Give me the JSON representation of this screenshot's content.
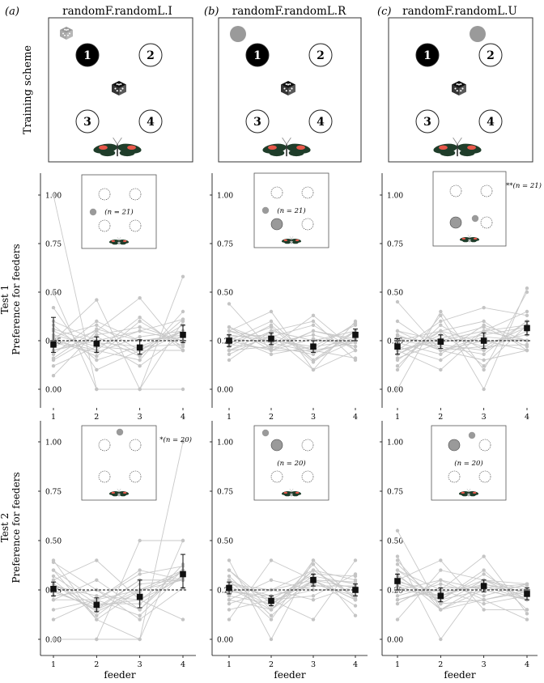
{
  "panel_letters": [
    "(a)",
    "(b)",
    "(c)"
  ],
  "column_titles": [
    "randomF.randomL.I",
    "randomF.randomL.R",
    "randomF.randomL.U"
  ],
  "row_titles": {
    "training": "Training scheme",
    "test1": "Test 1",
    "test2": "Test 2",
    "ylabel": "Preference for feeders"
  },
  "feeder_labels": [
    "1",
    "2",
    "3",
    "4"
  ],
  "colors": {
    "points": "#c4c4c4",
    "lines": "#c8c8c8",
    "mean": "#111111",
    "gray_feeder": "#9a9a9a",
    "black_feeder": "#000000",
    "butterfly_wing": "#1f3d2a",
    "butterfly_spot": "#e8574a"
  },
  "training_schemes": [
    {
      "black": [
        1
      ],
      "gray_dot": "top-left-dice",
      "dice_color": "#999999"
    },
    {
      "black": [
        1
      ],
      "gray_dot": "top-left-circle"
    },
    {
      "black": [
        1
      ],
      "gray_dot": "top-right-circle"
    }
  ],
  "insets": [
    {
      "n_label": "(n = 21)",
      "significance": "",
      "gray_feeders": [],
      "small_gray": "left-mid"
    },
    {
      "n_label": "(n = 21)",
      "significance": "",
      "gray_feeders": [
        3
      ],
      "small_gray": "left-mid"
    },
    {
      "n_label": "",
      "significance": "**(n = 21)",
      "gray_feeders": [
        3
      ],
      "small_gray": "center"
    },
    {
      "n_label": "",
      "significance": "*(n = 20)",
      "gray_feeders": [],
      "small_gray": "top-center"
    },
    {
      "n_label": "(n = 20)",
      "significance": "",
      "gray_feeders": [
        1
      ],
      "small_gray": "top-left"
    },
    {
      "n_label": "(n = 20)",
      "significance": "",
      "gray_feeders": [
        1
      ],
      "small_gray": "top-right"
    }
  ],
  "chart_data": [
    {
      "type": "line",
      "id": "a-test1",
      "title": "randomF.randomL.I — Test 1",
      "xlabel": "",
      "ylabel": "Preference for feeders",
      "categories": [
        "1",
        "2",
        "3",
        "4"
      ],
      "yticks": [
        "0.00",
        "0.25",
        "0.50",
        "0.75",
        "1.00"
      ],
      "ylim": [
        0,
        1
      ],
      "chance_level": 0.25,
      "mean": [
        0.23,
        0.235,
        0.215,
        0.28
      ],
      "ci": [
        [
          0.19,
          0.37
        ],
        [
          0.19,
          0.27
        ],
        [
          0.18,
          0.255
        ],
        [
          0.24,
          0.33
        ]
      ],
      "individuals": [
        [
          1.0,
          0.0,
          0.0,
          0.0
        ],
        [
          0.5,
          0.0,
          0.0,
          0.58
        ],
        [
          0.42,
          0.1,
          0.2,
          0.3
        ],
        [
          0.07,
          0.3,
          0.47,
          0.2
        ],
        [
          0.25,
          0.46,
          0.0,
          0.35
        ],
        [
          0.3,
          0.2,
          0.37,
          0.2
        ],
        [
          0.18,
          0.35,
          0.25,
          0.27
        ],
        [
          0.2,
          0.25,
          0.3,
          0.25
        ],
        [
          0.28,
          0.22,
          0.2,
          0.33
        ],
        [
          0.15,
          0.28,
          0.32,
          0.25
        ],
        [
          0.25,
          0.2,
          0.15,
          0.4
        ],
        [
          0.33,
          0.15,
          0.22,
          0.3
        ],
        [
          0.22,
          0.3,
          0.18,
          0.3
        ],
        [
          0.35,
          0.25,
          0.12,
          0.28
        ],
        [
          0.12,
          0.22,
          0.3,
          0.36
        ],
        [
          0.27,
          0.33,
          0.2,
          0.2
        ],
        [
          0.24,
          0.19,
          0.27,
          0.3
        ],
        [
          0.2,
          0.27,
          0.17,
          0.36
        ],
        [
          0.31,
          0.24,
          0.22,
          0.23
        ],
        [
          0.16,
          0.31,
          0.25,
          0.28
        ],
        [
          0.26,
          0.17,
          0.35,
          0.22
        ]
      ]
    },
    {
      "type": "line",
      "id": "b-test1",
      "title": "randomF.randomL.R — Test 1",
      "xlabel": "",
      "ylabel": "",
      "categories": [
        "1",
        "2",
        "3",
        "4"
      ],
      "yticks": [
        "0.00",
        "0.25",
        "0.50",
        "0.75",
        "1.00"
      ],
      "ylim": [
        0,
        1
      ],
      "chance_level": 0.25,
      "mean": [
        0.25,
        0.26,
        0.22,
        0.28
      ],
      "ci": [
        [
          0.22,
          0.28
        ],
        [
          0.23,
          0.29
        ],
        [
          0.19,
          0.25
        ],
        [
          0.25,
          0.31
        ]
      ],
      "individuals": [
        [
          0.44,
          0.2,
          0.2,
          0.16
        ],
        [
          0.3,
          0.4,
          0.1,
          0.2
        ],
        [
          0.2,
          0.3,
          0.35,
          0.15
        ],
        [
          0.25,
          0.2,
          0.3,
          0.25
        ],
        [
          0.22,
          0.33,
          0.15,
          0.3
        ],
        [
          0.28,
          0.25,
          0.22,
          0.25
        ],
        [
          0.18,
          0.28,
          0.2,
          0.34
        ],
        [
          0.3,
          0.22,
          0.18,
          0.3
        ],
        [
          0.2,
          0.3,
          0.25,
          0.25
        ],
        [
          0.26,
          0.24,
          0.28,
          0.22
        ],
        [
          0.24,
          0.32,
          0.14,
          0.3
        ],
        [
          0.32,
          0.2,
          0.26,
          0.22
        ],
        [
          0.2,
          0.27,
          0.33,
          0.2
        ],
        [
          0.27,
          0.18,
          0.22,
          0.33
        ],
        [
          0.15,
          0.3,
          0.25,
          0.3
        ],
        [
          0.3,
          0.26,
          0.2,
          0.24
        ],
        [
          0.23,
          0.21,
          0.3,
          0.26
        ],
        [
          0.25,
          0.35,
          0.15,
          0.25
        ],
        [
          0.32,
          0.24,
          0.19,
          0.25
        ],
        [
          0.2,
          0.22,
          0.38,
          0.2
        ],
        [
          0.27,
          0.28,
          0.1,
          0.35
        ]
      ]
    },
    {
      "type": "line",
      "id": "c-test1",
      "title": "randomF.randomL.U — Test 1",
      "xlabel": "",
      "ylabel": "",
      "categories": [
        "1",
        "2",
        "3",
        "4"
      ],
      "yticks": [
        "0.00",
        "0.25",
        "0.50",
        "0.75",
        "1.00"
      ],
      "ylim": [
        0,
        1
      ],
      "chance_level": 0.25,
      "mean": [
        0.22,
        0.245,
        0.25,
        0.315
      ],
      "ci": [
        [
          0.18,
          0.26
        ],
        [
          0.21,
          0.28
        ],
        [
          0.21,
          0.29
        ],
        [
          0.28,
          0.35
        ]
      ],
      "individuals": [
        [
          0.0,
          0.4,
          0.1,
          0.5
        ],
        [
          0.45,
          0.2,
          0.15,
          0.2
        ],
        [
          0.1,
          0.38,
          0.0,
          0.52
        ],
        [
          0.2,
          0.1,
          0.3,
          0.4
        ],
        [
          0.3,
          0.2,
          0.25,
          0.25
        ],
        [
          0.15,
          0.3,
          0.35,
          0.2
        ],
        [
          0.25,
          0.22,
          0.18,
          0.35
        ],
        [
          0.2,
          0.25,
          0.3,
          0.25
        ],
        [
          0.18,
          0.28,
          0.22,
          0.32
        ],
        [
          0.28,
          0.2,
          0.27,
          0.25
        ],
        [
          0.22,
          0.15,
          0.3,
          0.33
        ],
        [
          0.12,
          0.33,
          0.2,
          0.35
        ],
        [
          0.3,
          0.25,
          0.25,
          0.2
        ],
        [
          0.25,
          0.3,
          0.12,
          0.33
        ],
        [
          0.2,
          0.26,
          0.32,
          0.22
        ],
        [
          0.16,
          0.24,
          0.28,
          0.32
        ],
        [
          0.35,
          0.2,
          0.22,
          0.23
        ],
        [
          0.24,
          0.18,
          0.33,
          0.25
        ],
        [
          0.27,
          0.23,
          0.2,
          0.3
        ],
        [
          0.18,
          0.3,
          0.24,
          0.28
        ],
        [
          0.2,
          0.35,
          0.42,
          0.38
        ]
      ]
    },
    {
      "type": "line",
      "id": "a-test2",
      "title": "randomF.randomL.I — Test 2",
      "xlabel": "feeder",
      "ylabel": "Preference for feeders",
      "categories": [
        "1",
        "2",
        "3",
        "4"
      ],
      "yticks": [
        "0.00",
        "0.25",
        "0.50",
        "0.75",
        "1.00"
      ],
      "ylim": [
        0,
        1
      ],
      "chance_level": 0.25,
      "mean": [
        0.255,
        0.175,
        0.215,
        0.33
      ],
      "ci": [
        [
          0.22,
          0.29
        ],
        [
          0.14,
          0.21
        ],
        [
          0.16,
          0.3
        ],
        [
          0.26,
          0.43
        ]
      ],
      "individuals": [
        [
          0.0,
          0.0,
          0.0,
          1.0
        ],
        [
          0.0,
          0.0,
          0.5,
          0.5
        ],
        [
          0.4,
          0.1,
          0.0,
          0.5
        ],
        [
          0.39,
          0.25,
          0.1,
          0.26
        ],
        [
          0.3,
          0.4,
          0.2,
          0.1
        ],
        [
          0.25,
          0.15,
          0.3,
          0.3
        ],
        [
          0.35,
          0.1,
          0.25,
          0.3
        ],
        [
          0.2,
          0.2,
          0.25,
          0.35
        ],
        [
          0.28,
          0.17,
          0.2,
          0.35
        ],
        [
          0.22,
          0.25,
          0.15,
          0.38
        ],
        [
          0.3,
          0.12,
          0.28,
          0.3
        ],
        [
          0.15,
          0.2,
          0.35,
          0.3
        ],
        [
          0.25,
          0.15,
          0.25,
          0.35
        ],
        [
          0.32,
          0.18,
          0.18,
          0.32
        ],
        [
          0.27,
          0.22,
          0.2,
          0.31
        ],
        [
          0.1,
          0.2,
          0.33,
          0.37
        ],
        [
          0.2,
          0.3,
          0.15,
          0.35
        ],
        [
          0.28,
          0.14,
          0.24,
          0.34
        ],
        [
          0.35,
          0.2,
          0.12,
          0.33
        ],
        [
          0.24,
          0.16,
          0.3,
          0.3
        ]
      ]
    },
    {
      "type": "line",
      "id": "b-test2",
      "title": "randomF.randomL.R — Test 2",
      "xlabel": "feeder",
      "ylabel": "",
      "categories": [
        "1",
        "2",
        "3",
        "4"
      ],
      "yticks": [
        "0.00",
        "0.25",
        "0.50",
        "0.75",
        "1.00"
      ],
      "ylim": [
        0,
        1
      ],
      "chance_level": 0.25,
      "mean": [
        0.26,
        0.195,
        0.3,
        0.25
      ],
      "ci": [
        [
          0.23,
          0.29
        ],
        [
          0.17,
          0.22
        ],
        [
          0.27,
          0.33
        ],
        [
          0.22,
          0.28
        ]
      ],
      "individuals": [
        [
          0.4,
          0.0,
          0.4,
          0.2
        ],
        [
          0.1,
          0.4,
          0.3,
          0.2
        ],
        [
          0.3,
          0.2,
          0.1,
          0.4
        ],
        [
          0.35,
          0.15,
          0.38,
          0.12
        ],
        [
          0.25,
          0.25,
          0.3,
          0.2
        ],
        [
          0.2,
          0.15,
          0.35,
          0.3
        ],
        [
          0.3,
          0.2,
          0.25,
          0.25
        ],
        [
          0.22,
          0.18,
          0.32,
          0.28
        ],
        [
          0.28,
          0.22,
          0.28,
          0.22
        ],
        [
          0.18,
          0.25,
          0.35,
          0.22
        ],
        [
          0.32,
          0.12,
          0.3,
          0.26
        ],
        [
          0.25,
          0.2,
          0.22,
          0.33
        ],
        [
          0.3,
          0.1,
          0.4,
          0.2
        ],
        [
          0.2,
          0.3,
          0.25,
          0.25
        ],
        [
          0.26,
          0.15,
          0.3,
          0.29
        ],
        [
          0.24,
          0.22,
          0.27,
          0.27
        ],
        [
          0.35,
          0.18,
          0.3,
          0.17
        ],
        [
          0.15,
          0.2,
          0.33,
          0.32
        ],
        [
          0.28,
          0.25,
          0.2,
          0.27
        ],
        [
          0.27,
          0.17,
          0.35,
          0.21
        ]
      ]
    },
    {
      "type": "line",
      "id": "c-test2",
      "title": "randomF.randomL.U — Test 2",
      "xlabel": "feeder",
      "ylabel": "",
      "categories": [
        "1",
        "2",
        "3",
        "4"
      ],
      "yticks": [
        "0.00",
        "0.25",
        "0.50",
        "0.75",
        "1.00"
      ],
      "ylim": [
        0,
        1
      ],
      "chance_level": 0.25,
      "mean": [
        0.295,
        0.22,
        0.27,
        0.23
      ],
      "ci": [
        [
          0.25,
          0.33
        ],
        [
          0.19,
          0.26
        ],
        [
          0.24,
          0.3
        ],
        [
          0.2,
          0.26
        ]
      ],
      "individuals": [
        [
          0.55,
          0.15,
          0.2,
          0.1
        ],
        [
          0.42,
          0.0,
          0.3,
          0.28
        ],
        [
          0.3,
          0.4,
          0.15,
          0.15
        ],
        [
          0.1,
          0.35,
          0.3,
          0.25
        ],
        [
          0.2,
          0.25,
          0.42,
          0.13
        ],
        [
          0.35,
          0.2,
          0.25,
          0.2
        ],
        [
          0.25,
          0.3,
          0.2,
          0.25
        ],
        [
          0.32,
          0.18,
          0.3,
          0.2
        ],
        [
          0.28,
          0.22,
          0.28,
          0.22
        ],
        [
          0.4,
          0.15,
          0.25,
          0.2
        ],
        [
          0.22,
          0.28,
          0.22,
          0.28
        ],
        [
          0.3,
          0.2,
          0.35,
          0.15
        ],
        [
          0.18,
          0.3,
          0.25,
          0.27
        ],
        [
          0.35,
          0.25,
          0.18,
          0.22
        ],
        [
          0.27,
          0.2,
          0.33,
          0.2
        ],
        [
          0.33,
          0.15,
          0.28,
          0.24
        ],
        [
          0.25,
          0.22,
          0.3,
          0.23
        ],
        [
          0.38,
          0.18,
          0.2,
          0.24
        ],
        [
          0.29,
          0.24,
          0.27,
          0.2
        ],
        [
          0.2,
          0.26,
          0.26,
          0.28
        ]
      ]
    }
  ]
}
